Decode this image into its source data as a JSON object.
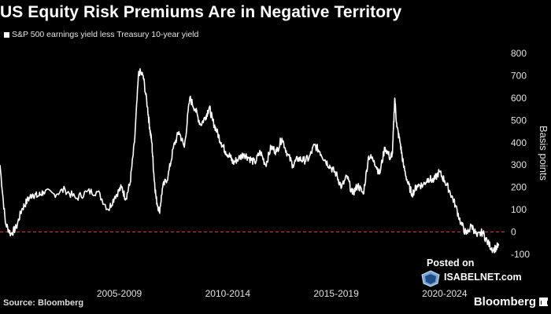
{
  "chart_data": {
    "type": "line",
    "title": "US Equity Risk Premiums Are in Negative Territory",
    "series": [
      {
        "name": "S&P 500 earnings yield less Treasury 10-year yield",
        "x": [
          2002.0,
          2002.25,
          2002.5,
          2002.75,
          2003.0,
          2003.25,
          2003.5,
          2003.75,
          2004.0,
          2004.5,
          2005.0,
          2005.5,
          2006.0,
          2006.5,
          2007.0,
          2007.3,
          2007.6,
          2007.8,
          2008.0,
          2008.2,
          2008.4,
          2008.6,
          2008.8,
          2008.9,
          2009.0,
          2009.1,
          2009.2,
          2009.35,
          2009.5,
          2009.75,
          2010.0,
          2010.25,
          2010.5,
          2010.75,
          2011.0,
          2011.25,
          2011.5,
          2011.65,
          2011.8,
          2012.0,
          2012.2,
          2012.4,
          2012.6,
          2012.75,
          2013.0,
          2013.25,
          2013.5,
          2013.75,
          2014.0,
          2014.25,
          2014.5,
          2014.75,
          2015.0,
          2015.25,
          2015.5,
          2015.75,
          2016.0,
          2016.25,
          2016.5,
          2016.75,
          2017.0,
          2017.25,
          2017.5,
          2017.75,
          2018.0,
          2018.25,
          2018.5,
          2018.75,
          2019.0,
          2019.25,
          2019.5,
          2019.75,
          2020.0,
          2020.1,
          2020.2,
          2020.3,
          2020.45,
          2020.6,
          2020.8,
          2021.0,
          2021.25,
          2021.5,
          2021.75,
          2022.0,
          2022.25,
          2022.5,
          2022.75,
          2023.0,
          2023.25,
          2023.5,
          2023.75,
          2024.0,
          2024.25,
          2024.5,
          2024.75,
          2025.0
        ],
        "values": [
          300,
          40,
          -10,
          20,
          100,
          140,
          170,
          160,
          180,
          170,
          190,
          150,
          180,
          180,
          100,
          160,
          200,
          150,
          220,
          400,
          720,
          700,
          560,
          470,
          400,
          250,
          150,
          90,
          200,
          250,
          380,
          450,
          380,
          600,
          550,
          480,
          520,
          560,
          500,
          450,
          400,
          360,
          340,
          310,
          330,
          350,
          330,
          310,
          360,
          300,
          380,
          360,
          420,
          350,
          300,
          330,
          320,
          330,
          390,
          360,
          320,
          290,
          260,
          200,
          250,
          170,
          210,
          170,
          340,
          320,
          260,
          380,
          330,
          360,
          600,
          470,
          400,
          300,
          220,
          170,
          210,
          210,
          240,
          230,
          270,
          230,
          180,
          120,
          40,
          -10,
          30,
          -20,
          0,
          -50,
          -80,
          -60
        ],
        "color": "#ffffff"
      }
    ],
    "xlabel": "",
    "ylabel": "Basis points",
    "xlim": [
      2002.0,
      2025.3
    ],
    "ylim": [
      -120,
      820
    ],
    "yticks": [
      "800",
      "700",
      "600",
      "500",
      "400",
      "300",
      "200",
      "100",
      "0",
      "-100"
    ],
    "xtick_labels": [
      "2005-2009",
      "2010-2014",
      "2015-2019",
      "2020-2024"
    ],
    "reference_line": {
      "y": 0,
      "color": "#e0343a"
    },
    "source": "Source: Bloomberg",
    "brand": "Bloomberg",
    "watermark": {
      "posted": "Posted on",
      "site": "ISABELNET.com"
    }
  }
}
